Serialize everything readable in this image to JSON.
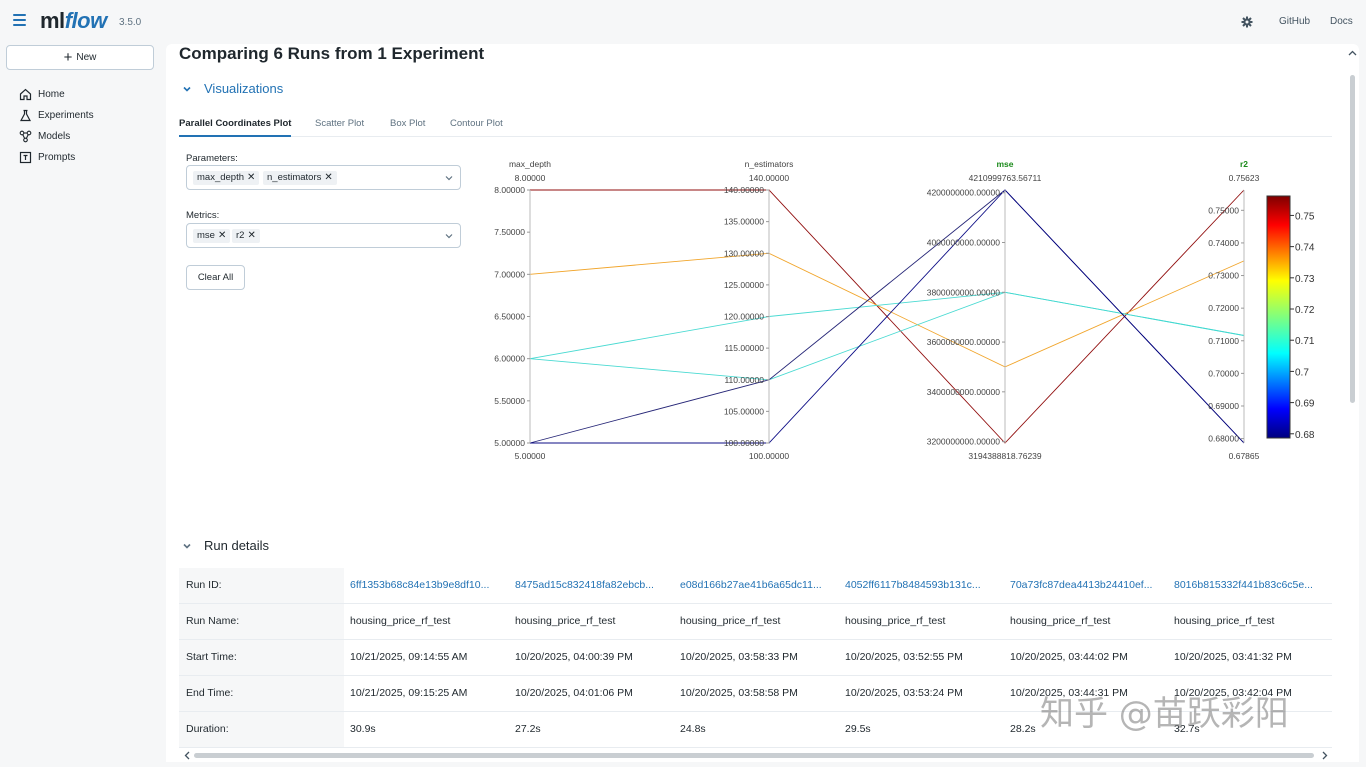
{
  "app": {
    "logo_ml": "ml",
    "logo_flow": "flow",
    "version": "3.5.0"
  },
  "topnav": {
    "github": "GitHub",
    "docs": "Docs"
  },
  "sidebar": {
    "new_button": "New",
    "items": [
      {
        "label": "Home",
        "icon": "home-icon"
      },
      {
        "label": "Experiments",
        "icon": "experiments-icon"
      },
      {
        "label": "Models",
        "icon": "models-icon"
      },
      {
        "label": "Prompts",
        "icon": "prompts-icon"
      }
    ]
  },
  "main": {
    "title": "Comparing 6 Runs from 1 Experiment",
    "visualizations_label": "Visualizations",
    "tabs": [
      "Parallel Coordinates Plot",
      "Scatter Plot",
      "Box Plot",
      "Contour Plot"
    ],
    "active_tab": "Parallel Coordinates Plot",
    "parameters_label": "Parameters:",
    "parameters": [
      "max_depth",
      "n_estimators"
    ],
    "metrics_label": "Metrics:",
    "metrics": [
      "mse",
      "r2"
    ],
    "clear_all": "Clear All",
    "run_details_label": "Run details"
  },
  "chart_data": {
    "type": "parallel_coordinates",
    "dimensions": [
      {
        "name": "max_depth",
        "top_label": "8.00000",
        "bottom_label": "5.00000",
        "range": [
          5,
          8
        ],
        "ticks": [
          "8.00000",
          "7.50000",
          "7.00000",
          "6.50000",
          "6.00000",
          "5.50000",
          "5.00000"
        ],
        "highlight": false
      },
      {
        "name": "n_estimators",
        "top_label": "140.00000",
        "bottom_label": "100.00000",
        "range": [
          100,
          140
        ],
        "ticks": [
          "140.00000",
          "135.00000",
          "130.00000",
          "125.00000",
          "120.00000",
          "115.00000",
          "110.00000",
          "105.00000",
          "100.00000"
        ],
        "highlight": false
      },
      {
        "name": "mse",
        "top_label": "4210999763.56711",
        "bottom_label": "3194388818.76239",
        "range": [
          3194388818.76239,
          4210999763.56711
        ],
        "ticks": [
          "4200000000.00000",
          "4000000000.00000",
          "3800000000.00000",
          "3600000000.00000",
          "3400000000.00000",
          "3200000000.00000"
        ],
        "tick_values": [
          4200000000,
          4000000000,
          3800000000,
          3600000000,
          3400000000,
          3200000000
        ],
        "highlight": true
      },
      {
        "name": "r2",
        "top_label": "0.75623",
        "bottom_label": "0.67865",
        "range": [
          0.67865,
          0.75623
        ],
        "ticks": [
          "0.75000",
          "0.74000",
          "0.73000",
          "0.72000",
          "0.71000",
          "0.70000",
          "0.69000",
          "0.68000"
        ],
        "tick_values": [
          0.75,
          0.74,
          0.73,
          0.72,
          0.71,
          0.7,
          0.69,
          0.68
        ],
        "highlight": true
      }
    ],
    "lines": [
      {
        "max_depth": 8,
        "n_estimators": 140,
        "mse": 3194388818.76,
        "r2": 0.75623,
        "color": "#8b0000"
      },
      {
        "max_depth": 7,
        "n_estimators": 130,
        "mse": 3500000000,
        "r2": 0.7345,
        "color": "#f0a020"
      },
      {
        "max_depth": 6,
        "n_estimators": 120,
        "mse": 3800000000,
        "r2": 0.7116,
        "color": "#40d8d0"
      },
      {
        "max_depth": 6,
        "n_estimators": 110,
        "mse": 3800000000,
        "r2": 0.7116,
        "color": "#40d8d0"
      },
      {
        "max_depth": 5,
        "n_estimators": 110,
        "mse": 4210999763.57,
        "r2": 0.67865,
        "color": "#1a1a70"
      },
      {
        "max_depth": 5,
        "n_estimators": 100,
        "mse": 4210999763.57,
        "r2": 0.67865,
        "color": "#000080"
      }
    ],
    "colorbar": {
      "labels": [
        "0.75",
        "0.74",
        "0.73",
        "0.72",
        "0.71",
        "0.7",
        "0.69",
        "0.68"
      ],
      "values": [
        0.75,
        0.74,
        0.73,
        0.72,
        0.71,
        0.7,
        0.69,
        0.68
      ],
      "range": [
        0.67865,
        0.75623
      ]
    }
  },
  "run_details": {
    "rows": [
      {
        "label": "Run ID:",
        "values": [
          "6ff1353b68c84e13b9e8df10...",
          "8475ad15c832418fa82ebcb...",
          "e08d166b27ae41b6a65dc11...",
          "4052ff6117b8484593b131c...",
          "70a73fc87dea4413b24410ef...",
          "8016b815332f441b83c6c5e..."
        ],
        "link": true
      },
      {
        "label": "Run Name:",
        "values": [
          "housing_price_rf_test",
          "housing_price_rf_test",
          "housing_price_rf_test",
          "housing_price_rf_test",
          "housing_price_rf_test",
          "housing_price_rf_test"
        ],
        "link": false
      },
      {
        "label": "Start Time:",
        "values": [
          "10/21/2025, 09:14:55 AM",
          "10/20/2025, 04:00:39 PM",
          "10/20/2025, 03:58:33 PM",
          "10/20/2025, 03:52:55 PM",
          "10/20/2025, 03:44:02 PM",
          "10/20/2025, 03:41:32 PM"
        ],
        "link": false
      },
      {
        "label": "End Time:",
        "values": [
          "10/21/2025, 09:15:25 AM",
          "10/20/2025, 04:01:06 PM",
          "10/20/2025, 03:58:58 PM",
          "10/20/2025, 03:53:24 PM",
          "10/20/2025, 03:44:31 PM",
          "10/20/2025, 03:42:04 PM"
        ],
        "link": false
      },
      {
        "label": "Duration:",
        "values": [
          "30.9s",
          "27.2s",
          "24.8s",
          "29.5s",
          "28.2s",
          "32.7s"
        ],
        "link": false
      }
    ]
  },
  "watermark": "知乎 @苗跃彩阳"
}
